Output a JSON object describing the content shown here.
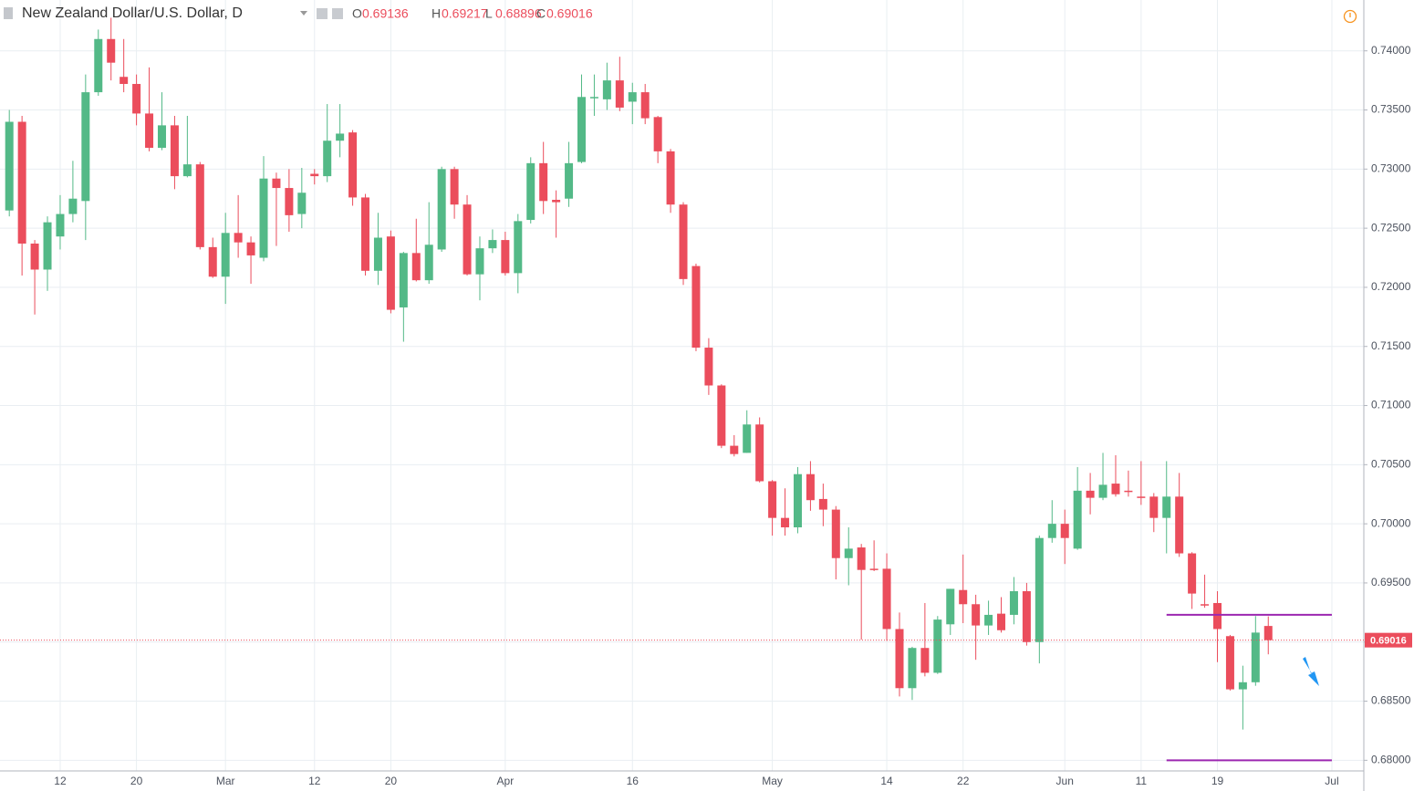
{
  "chart_data": {
    "type": "candlestick",
    "title": "New Zealand Dollar/U.S. Dollar, D",
    "ohlc_labels": [
      "O",
      "H",
      "L",
      "C"
    ],
    "categories": [
      null,
      null,
      null,
      null,
      "12",
      null,
      null,
      null,
      null,
      null,
      "20",
      null,
      null,
      null,
      null,
      null,
      null,
      "Mar",
      null,
      null,
      null,
      null,
      null,
      null,
      "12",
      null,
      null,
      null,
      null,
      null,
      "20",
      null,
      null,
      null,
      null,
      null,
      null,
      null,
      null,
      "Apr",
      null,
      null,
      null,
      null,
      null,
      null,
      null,
      null,
      null,
      "16",
      null,
      null,
      null,
      null,
      null,
      null,
      null,
      null,
      null,
      null,
      "May",
      null,
      null,
      null,
      null,
      null,
      null,
      null,
      null,
      "14",
      null,
      null,
      null,
      null,
      null,
      "22",
      null,
      null,
      null,
      null,
      null,
      null,
      null,
      "Jun",
      null,
      null,
      null,
      null,
      null,
      "11",
      null,
      null,
      null,
      null,
      null,
      "19",
      null,
      null,
      null,
      null,
      null,
      null,
      null,
      null,
      "Jul"
    ],
    "open": [
      0.7265,
      0.734,
      0.7237,
      0.7215,
      0.7243,
      0.7262,
      0.7273,
      0.7365,
      0.741,
      0.7378,
      0.7372,
      0.7347,
      0.7318,
      0.7337,
      0.7294,
      0.7304,
      0.7234,
      0.7209,
      0.7246,
      0.7238,
      0.7225,
      0.7292,
      0.7284,
      0.7262,
      0.7296,
      0.7294,
      0.7324,
      0.7331,
      0.7276,
      0.7214,
      0.7243,
      0.7183,
      0.7229,
      0.7206,
      0.7232,
      0.73,
      0.727,
      0.7211,
      0.7233,
      0.724,
      0.7212,
      0.7257,
      0.7305,
      0.7274,
      0.7275,
      0.7306,
      0.736,
      0.7359,
      0.7375,
      0.7357,
      0.7365,
      0.7344,
      0.7315,
      0.727,
      0.7218,
      0.7149,
      0.7117,
      0.7066,
      0.706,
      0.7084,
      0.7036,
      0.7005,
      0.6997,
      0.7042,
      0.7021,
      0.7012,
      0.6971,
      0.698,
      0.6962,
      0.6962,
      0.6911,
      0.6861,
      0.6895,
      0.6874,
      0.6915,
      0.6944,
      0.6932,
      0.6914,
      0.6924,
      0.6923,
      0.6943,
      0.69,
      0.6988,
      0.7,
      0.6979,
      0.7028,
      0.7022,
      0.7034,
      0.7028,
      0.7023,
      0.7023,
      0.7005,
      0.7023,
      0.6975,
      0.6932,
      0.6933,
      0.6905,
      0.686,
      0.6866,
      0.69136,
      null,
      null,
      null,
      null,
      null
    ],
    "high": [
      0.735,
      0.7345,
      0.724,
      0.726,
      0.7278,
      0.7307,
      0.738,
      0.7418,
      0.7428,
      0.741,
      0.738,
      0.7386,
      0.7365,
      0.7345,
      0.7345,
      0.7306,
      0.7242,
      0.7263,
      0.7278,
      0.7243,
      0.7311,
      0.7297,
      0.73,
      0.7301,
      0.73,
      0.7355,
      0.7355,
      0.7333,
      0.7279,
      0.7263,
      0.7248,
      0.723,
      0.7258,
      0.7272,
      0.7302,
      0.7302,
      0.7278,
      0.7243,
      0.7249,
      0.7247,
      0.7262,
      0.731,
      0.7323,
      0.7282,
      0.7323,
      0.738,
      0.738,
      0.739,
      0.7395,
      0.7373,
      0.7372,
      0.7345,
      0.7317,
      0.7272,
      0.722,
      0.7157,
      0.7118,
      0.7075,
      0.7096,
      0.709,
      0.7037,
      0.703,
      0.7048,
      0.7053,
      0.7034,
      0.7015,
      0.6997,
      0.6983,
      0.6986,
      0.6975,
      0.6925,
      0.6896,
      0.6933,
      0.6922,
      0.6945,
      0.6974,
      0.694,
      0.6935,
      0.6938,
      0.6955,
      0.695,
      0.699,
      0.702,
      0.7012,
      0.7048,
      0.7043,
      0.706,
      0.7058,
      0.7045,
      0.7053,
      0.7026,
      0.7053,
      0.7043,
      0.6976,
      0.6957,
      0.6943,
      0.6906,
      0.688,
      0.6922,
      0.69217,
      null,
      null,
      null,
      null,
      null
    ],
    "low": [
      0.726,
      0.721,
      0.7177,
      0.7197,
      0.7232,
      0.7255,
      0.724,
      0.7362,
      0.7375,
      0.7365,
      0.7337,
      0.7315,
      0.7316,
      0.7283,
      0.7293,
      0.7232,
      0.7208,
      0.7186,
      0.7225,
      0.7203,
      0.7222,
      0.7235,
      0.7247,
      0.725,
      0.7287,
      0.7289,
      0.731,
      0.7269,
      0.721,
      0.7202,
      0.7178,
      0.7154,
      0.7205,
      0.7203,
      0.723,
      0.7258,
      0.721,
      0.7189,
      0.7229,
      0.721,
      0.7195,
      0.7254,
      0.7262,
      0.7242,
      0.7268,
      0.7305,
      0.7345,
      0.735,
      0.7349,
      0.7338,
      0.7338,
      0.7305,
      0.7263,
      0.7202,
      0.7146,
      0.7109,
      0.7064,
      0.7057,
      0.706,
      0.7035,
      0.699,
      0.699,
      0.6992,
      0.7011,
      0.6998,
      0.6953,
      0.6948,
      0.6902,
      0.696,
      0.6901,
      0.6854,
      0.6851,
      0.6871,
      0.6873,
      0.6906,
      0.6916,
      0.6885,
      0.6906,
      0.6908,
      0.6915,
      0.6897,
      0.6882,
      0.6984,
      0.6966,
      0.6978,
      0.7008,
      0.702,
      0.7023,
      0.7023,
      0.7016,
      0.6993,
      0.6975,
      0.6972,
      0.6928,
      0.6929,
      0.6883,
      0.6859,
      0.6826,
      0.6863,
      0.68896,
      null,
      null,
      null,
      null,
      null
    ],
    "close": [
      0.734,
      0.7237,
      0.7215,
      0.7255,
      0.7262,
      0.7275,
      0.7365,
      0.741,
      0.739,
      0.7372,
      0.7347,
      0.7318,
      0.7337,
      0.7294,
      0.7304,
      0.7234,
      0.7209,
      0.7246,
      0.7238,
      0.7227,
      0.7292,
      0.7284,
      0.7261,
      0.728,
      0.7294,
      0.7324,
      0.733,
      0.7276,
      0.7214,
      0.7242,
      0.7181,
      0.7229,
      0.7206,
      0.7236,
      0.73,
      0.727,
      0.7211,
      0.7233,
      0.724,
      0.7212,
      0.7256,
      0.7305,
      0.7273,
      0.7272,
      0.7305,
      0.7361,
      0.7361,
      0.7375,
      0.7352,
      0.7365,
      0.7343,
      0.7315,
      0.727,
      0.7207,
      0.7149,
      0.7117,
      0.7066,
      0.7059,
      0.7084,
      0.7036,
      0.7005,
      0.6997,
      0.7042,
      0.702,
      0.7012,
      0.6971,
      0.6979,
      0.6961,
      0.6961,
      0.6911,
      0.6861,
      0.6895,
      0.6874,
      0.6919,
      0.6945,
      0.6932,
      0.6914,
      0.6923,
      0.691,
      0.6943,
      0.69,
      0.6988,
      0.7,
      0.6988,
      0.7028,
      0.7022,
      0.7033,
      0.7025,
      0.7027,
      0.7022,
      0.7005,
      0.7023,
      0.6975,
      0.6941,
      0.6931,
      0.6911,
      0.686,
      0.6866,
      0.6908,
      0.69016,
      null,
      null,
      null,
      null,
      null
    ],
    "up_color": "#53b987",
    "down_color": "#eb4d5c",
    "ylim": [
      0.6791,
      0.7443
    ],
    "yticks": [
      {
        "value": 0.68,
        "label": "0.68000"
      },
      {
        "value": 0.685,
        "label": "0.68500"
      },
      {
        "value": 0.69,
        "label": "0.69000"
      },
      {
        "value": 0.695,
        "label": "0.69500"
      },
      {
        "value": 0.7,
        "label": "0.70000"
      },
      {
        "value": 0.705,
        "label": "0.70500"
      },
      {
        "value": 0.71,
        "label": "0.71000"
      },
      {
        "value": 0.715,
        "label": "0.71500"
      },
      {
        "value": 0.72,
        "label": "0.72000"
      },
      {
        "value": 0.725,
        "label": "0.72500"
      },
      {
        "value": 0.73,
        "label": "0.73000"
      },
      {
        "value": 0.735,
        "label": "0.73500"
      },
      {
        "value": 0.74,
        "label": "0.74000"
      }
    ],
    "grid": true,
    "levels": [
      0.6923,
      0.68
    ],
    "level_color": "#9c27b0"
  }
}
